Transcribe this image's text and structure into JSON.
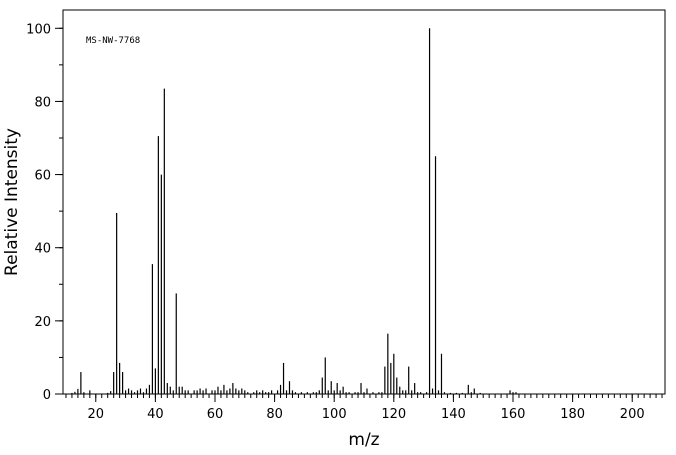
{
  "chart_data": {
    "type": "bar",
    "title": "",
    "annotation": "MS-NW-7768",
    "xlabel": "m/z",
    "ylabel": "Relative Intensity",
    "xlim": [
      9,
      211
    ],
    "ylim": [
      0,
      105
    ],
    "x_major_ticks": [
      20,
      40,
      60,
      80,
      100,
      120,
      140,
      160,
      180,
      200
    ],
    "x_minor_step": 2,
    "y_major_ticks": [
      0,
      20,
      40,
      60,
      80,
      100
    ],
    "y_minor_step": 10,
    "grid": false,
    "legend": "none",
    "peaks": [
      {
        "mz": 12,
        "intensity": 0.3
      },
      {
        "mz": 13,
        "intensity": 0.6
      },
      {
        "mz": 14,
        "intensity": 1.4
      },
      {
        "mz": 15,
        "intensity": 6.0
      },
      {
        "mz": 16,
        "intensity": 0.5
      },
      {
        "mz": 18,
        "intensity": 1.0
      },
      {
        "mz": 24,
        "intensity": 0.3
      },
      {
        "mz": 25,
        "intensity": 0.8
      },
      {
        "mz": 26,
        "intensity": 6.0
      },
      {
        "mz": 27,
        "intensity": 49.5
      },
      {
        "mz": 28,
        "intensity": 8.5
      },
      {
        "mz": 29,
        "intensity": 6.0
      },
      {
        "mz": 30,
        "intensity": 1.0
      },
      {
        "mz": 31,
        "intensity": 1.5
      },
      {
        "mz": 32,
        "intensity": 1.0
      },
      {
        "mz": 33,
        "intensity": 0.5
      },
      {
        "mz": 34,
        "intensity": 1.0
      },
      {
        "mz": 35,
        "intensity": 1.5
      },
      {
        "mz": 36,
        "intensity": 0.5
      },
      {
        "mz": 37,
        "intensity": 1.5
      },
      {
        "mz": 38,
        "intensity": 2.5
      },
      {
        "mz": 39,
        "intensity": 35.5
      },
      {
        "mz": 40,
        "intensity": 7.0
      },
      {
        "mz": 41,
        "intensity": 70.5
      },
      {
        "mz": 42,
        "intensity": 60.0
      },
      {
        "mz": 43,
        "intensity": 83.5
      },
      {
        "mz": 44,
        "intensity": 3.0
      },
      {
        "mz": 45,
        "intensity": 2.0
      },
      {
        "mz": 46,
        "intensity": 1.0
      },
      {
        "mz": 47,
        "intensity": 27.5
      },
      {
        "mz": 48,
        "intensity": 2.0
      },
      {
        "mz": 49,
        "intensity": 2.0
      },
      {
        "mz": 50,
        "intensity": 1.0
      },
      {
        "mz": 51,
        "intensity": 1.0
      },
      {
        "mz": 53,
        "intensity": 1.0
      },
      {
        "mz": 54,
        "intensity": 1.0
      },
      {
        "mz": 55,
        "intensity": 1.5
      },
      {
        "mz": 56,
        "intensity": 1.0
      },
      {
        "mz": 57,
        "intensity": 1.5
      },
      {
        "mz": 59,
        "intensity": 1.0
      },
      {
        "mz": 60,
        "intensity": 1.0
      },
      {
        "mz": 61,
        "intensity": 2.0
      },
      {
        "mz": 62,
        "intensity": 1.0
      },
      {
        "mz": 63,
        "intensity": 2.5
      },
      {
        "mz": 64,
        "intensity": 1.0
      },
      {
        "mz": 65,
        "intensity": 1.5
      },
      {
        "mz": 66,
        "intensity": 3.0
      },
      {
        "mz": 67,
        "intensity": 1.5
      },
      {
        "mz": 68,
        "intensity": 1.0
      },
      {
        "mz": 69,
        "intensity": 1.5
      },
      {
        "mz": 70,
        "intensity": 1.0
      },
      {
        "mz": 71,
        "intensity": 0.5
      },
      {
        "mz": 73,
        "intensity": 0.5
      },
      {
        "mz": 74,
        "intensity": 1.0
      },
      {
        "mz": 75,
        "intensity": 0.5
      },
      {
        "mz": 76,
        "intensity": 1.0
      },
      {
        "mz": 77,
        "intensity": 0.5
      },
      {
        "mz": 78,
        "intensity": 0.5
      },
      {
        "mz": 79,
        "intensity": 1.0
      },
      {
        "mz": 81,
        "intensity": 1.0
      },
      {
        "mz": 82,
        "intensity": 2.5
      },
      {
        "mz": 83,
        "intensity": 8.5
      },
      {
        "mz": 84,
        "intensity": 1.0
      },
      {
        "mz": 85,
        "intensity": 3.5
      },
      {
        "mz": 86,
        "intensity": 1.0
      },
      {
        "mz": 87,
        "intensity": 0.5
      },
      {
        "mz": 89,
        "intensity": 0.5
      },
      {
        "mz": 91,
        "intensity": 0.5
      },
      {
        "mz": 93,
        "intensity": 0.5
      },
      {
        "mz": 94,
        "intensity": 0.5
      },
      {
        "mz": 95,
        "intensity": 1.0
      },
      {
        "mz": 96,
        "intensity": 4.5
      },
      {
        "mz": 97,
        "intensity": 10.0
      },
      {
        "mz": 98,
        "intensity": 1.0
      },
      {
        "mz": 99,
        "intensity": 3.5
      },
      {
        "mz": 100,
        "intensity": 1.0
      },
      {
        "mz": 101,
        "intensity": 3.0
      },
      {
        "mz": 102,
        "intensity": 1.0
      },
      {
        "mz": 103,
        "intensity": 2.0
      },
      {
        "mz": 104,
        "intensity": 0.5
      },
      {
        "mz": 105,
        "intensity": 0.5
      },
      {
        "mz": 107,
        "intensity": 0.5
      },
      {
        "mz": 108,
        "intensity": 0.5
      },
      {
        "mz": 109,
        "intensity": 3.0
      },
      {
        "mz": 110,
        "intensity": 0.5
      },
      {
        "mz": 111,
        "intensity": 1.5
      },
      {
        "mz": 113,
        "intensity": 0.5
      },
      {
        "mz": 115,
        "intensity": 0.5
      },
      {
        "mz": 116,
        "intensity": 0.5
      },
      {
        "mz": 117,
        "intensity": 7.5
      },
      {
        "mz": 118,
        "intensity": 16.5
      },
      {
        "mz": 119,
        "intensity": 8.5
      },
      {
        "mz": 120,
        "intensity": 11.0
      },
      {
        "mz": 121,
        "intensity": 4.5
      },
      {
        "mz": 122,
        "intensity": 2.0
      },
      {
        "mz": 123,
        "intensity": 1.0
      },
      {
        "mz": 124,
        "intensity": 1.0
      },
      {
        "mz": 125,
        "intensity": 7.5
      },
      {
        "mz": 126,
        "intensity": 1.0
      },
      {
        "mz": 127,
        "intensity": 3.0
      },
      {
        "mz": 128,
        "intensity": 0.5
      },
      {
        "mz": 129,
        "intensity": 0.5
      },
      {
        "mz": 131,
        "intensity": 0.5
      },
      {
        "mz": 132,
        "intensity": 100.0
      },
      {
        "mz": 133,
        "intensity": 1.5
      },
      {
        "mz": 134,
        "intensity": 65.0
      },
      {
        "mz": 135,
        "intensity": 1.0
      },
      {
        "mz": 136,
        "intensity": 11.0
      },
      {
        "mz": 137,
        "intensity": 0.5
      },
      {
        "mz": 139,
        "intensity": 0.3
      },
      {
        "mz": 141,
        "intensity": 0.3
      },
      {
        "mz": 143,
        "intensity": 0.3
      },
      {
        "mz": 145,
        "intensity": 2.5
      },
      {
        "mz": 146,
        "intensity": 0.5
      },
      {
        "mz": 147,
        "intensity": 1.5
      },
      {
        "mz": 149,
        "intensity": 0.3
      },
      {
        "mz": 159,
        "intensity": 1.0
      },
      {
        "mz": 160,
        "intensity": 0.5
      },
      {
        "mz": 161,
        "intensity": 0.5
      }
    ]
  }
}
